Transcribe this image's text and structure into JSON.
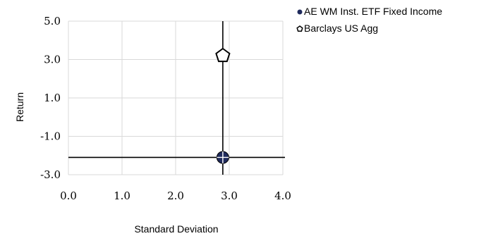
{
  "chart_data": {
    "type": "scatter",
    "xlabel": "Standard Deviation",
    "ylabel": "Return",
    "xlim": [
      0.0,
      4.0
    ],
    "ylim": [
      -3.0,
      5.0
    ],
    "x_ticks": [
      "0.0",
      "1.0",
      "2.0",
      "3.0",
      "4.0"
    ],
    "y_ticks": [
      "5.0",
      "3.0",
      "1.0",
      "-1.0",
      "-3.0"
    ],
    "grid": true,
    "legend_position": "top-right",
    "series": [
      {
        "name": "AE WM Inst. ETF Fixed Income",
        "marker": "circle",
        "color": "#1f2a5c",
        "x": 2.88,
        "y": -2.1,
        "crosshair": true
      },
      {
        "name": "Barclays US Agg",
        "marker": "pentagon",
        "color": "#ffffff",
        "x": 2.88,
        "y": 3.2
      }
    ]
  }
}
